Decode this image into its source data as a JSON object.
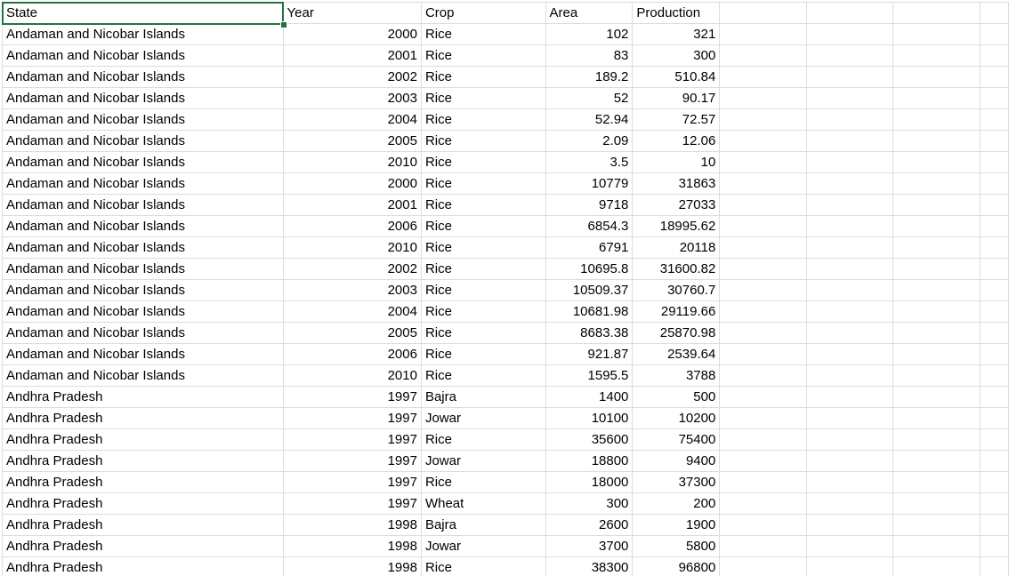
{
  "colors": {
    "gridline": "#dcdcdc",
    "selection": "#217346"
  },
  "headers": [
    "State",
    "Year",
    "Crop",
    "Area",
    "Production"
  ],
  "rows": [
    [
      "Andaman and Nicobar Islands",
      "2000",
      "Rice",
      "102",
      "321"
    ],
    [
      "Andaman and Nicobar Islands",
      "2001",
      "Rice",
      "83",
      "300"
    ],
    [
      "Andaman and Nicobar Islands",
      "2002",
      "Rice",
      "189.2",
      "510.84"
    ],
    [
      "Andaman and Nicobar Islands",
      "2003",
      "Rice",
      "52",
      "90.17"
    ],
    [
      "Andaman and Nicobar Islands",
      "2004",
      "Rice",
      "52.94",
      "72.57"
    ],
    [
      "Andaman and Nicobar Islands",
      "2005",
      "Rice",
      "2.09",
      "12.06"
    ],
    [
      "Andaman and Nicobar Islands",
      "2010",
      "Rice",
      "3.5",
      "10"
    ],
    [
      "Andaman and Nicobar Islands",
      "2000",
      "Rice",
      "10779",
      "31863"
    ],
    [
      "Andaman and Nicobar Islands",
      "2001",
      "Rice",
      "9718",
      "27033"
    ],
    [
      "Andaman and Nicobar Islands",
      "2006",
      "Rice",
      "6854.3",
      "18995.62"
    ],
    [
      "Andaman and Nicobar Islands",
      "2010",
      "Rice",
      "6791",
      "20118"
    ],
    [
      "Andaman and Nicobar Islands",
      "2002",
      "Rice",
      "10695.8",
      "31600.82"
    ],
    [
      "Andaman and Nicobar Islands",
      "2003",
      "Rice",
      "10509.37",
      "30760.7"
    ],
    [
      "Andaman and Nicobar Islands",
      "2004",
      "Rice",
      "10681.98",
      "29119.66"
    ],
    [
      "Andaman and Nicobar Islands",
      "2005",
      "Rice",
      "8683.38",
      "25870.98"
    ],
    [
      "Andaman and Nicobar Islands",
      "2006",
      "Rice",
      "921.87",
      "2539.64"
    ],
    [
      "Andaman and Nicobar Islands",
      "2010",
      "Rice",
      "1595.5",
      "3788"
    ],
    [
      "Andhra Pradesh",
      "1997",
      "Bajra",
      "1400",
      "500"
    ],
    [
      "Andhra Pradesh",
      "1997",
      "Jowar",
      "10100",
      "10200"
    ],
    [
      "Andhra Pradesh",
      "1997",
      "Rice",
      "35600",
      "75400"
    ],
    [
      "Andhra Pradesh",
      "1997",
      "Jowar",
      "18800",
      "9400"
    ],
    [
      "Andhra Pradesh",
      "1997",
      "Rice",
      "18000",
      "37300"
    ],
    [
      "Andhra Pradesh",
      "1997",
      "Wheat",
      "300",
      "200"
    ],
    [
      "Andhra Pradesh",
      "1998",
      "Bajra",
      "2600",
      "1900"
    ],
    [
      "Andhra Pradesh",
      "1998",
      "Jowar",
      "3700",
      "5800"
    ],
    [
      "Andhra Pradesh",
      "1998",
      "Rice",
      "38300",
      "96800"
    ]
  ]
}
